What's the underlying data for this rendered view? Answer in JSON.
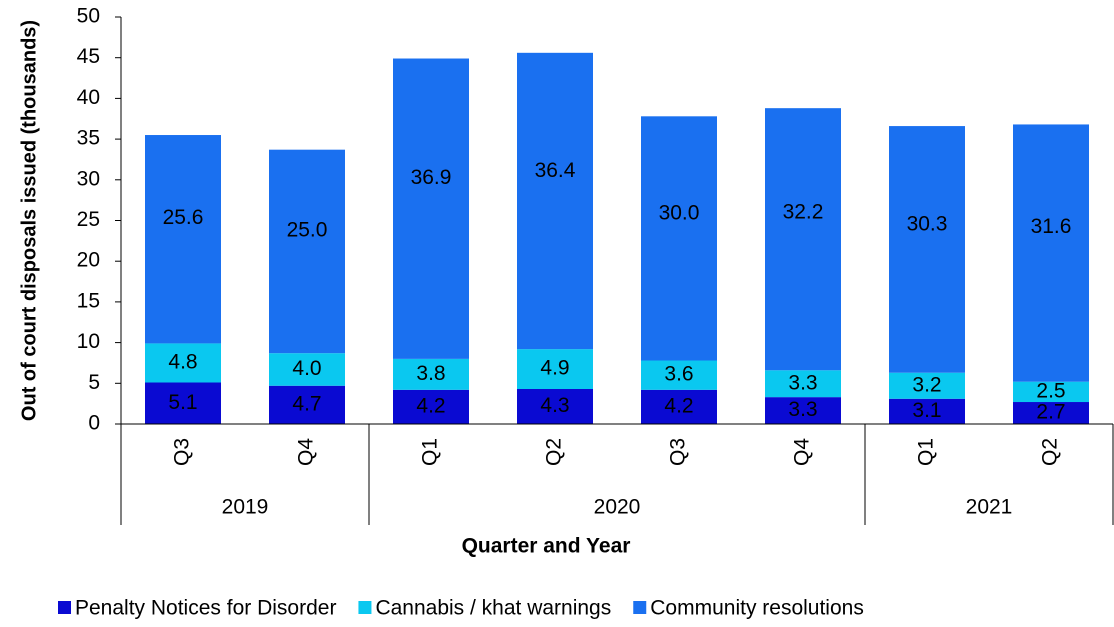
{
  "chart_data": {
    "type": "stacked_bar",
    "categories": [
      "Q3",
      "Q4",
      "Q1",
      "Q2",
      "Q3",
      "Q4",
      "Q1",
      "Q2"
    ],
    "years": [
      "2019",
      null,
      "2020",
      null,
      null,
      null,
      "2021",
      null
    ],
    "x_label": "Quarter and Year",
    "y_label": "Out of court disposals issued (thousands)",
    "ylim": [
      0,
      50
    ],
    "yticks": [
      0,
      5,
      10,
      15,
      20,
      25,
      30,
      35,
      40,
      45,
      50
    ],
    "legend": "bottom",
    "series": [
      {
        "name": "Penalty Notices for Disorder",
        "color": "#0a0ad2",
        "label_color": "#ffffff",
        "values": [
          5.1,
          4.7,
          4.2,
          4.3,
          4.2,
          3.3,
          3.1,
          2.7
        ],
        "value_labels": [
          "5.1",
          "4.7",
          "4.2",
          "4.3",
          "4.2",
          "3.3",
          "3.1",
          "2.7"
        ]
      },
      {
        "name": "Cannabis / khat warnings",
        "color": "#0ac8f0",
        "label_color": "#000000",
        "values": [
          4.8,
          4.0,
          3.8,
          4.9,
          3.6,
          3.3,
          3.2,
          2.5
        ],
        "value_labels": [
          "4.8",
          "4.0",
          "3.8",
          "4.9",
          "3.6",
          "3.3",
          "3.2",
          "2.5"
        ]
      },
      {
        "name": "Community resolutions",
        "color": "#1a70f0",
        "label_color": "#ffffff",
        "values": [
          25.6,
          25.0,
          36.9,
          36.4,
          30.0,
          32.2,
          30.3,
          31.6
        ],
        "value_labels": [
          "25.6",
          "25.0",
          "36.9",
          "36.4",
          "30.0",
          "32.2",
          "30.3",
          "31.6"
        ]
      }
    ]
  }
}
